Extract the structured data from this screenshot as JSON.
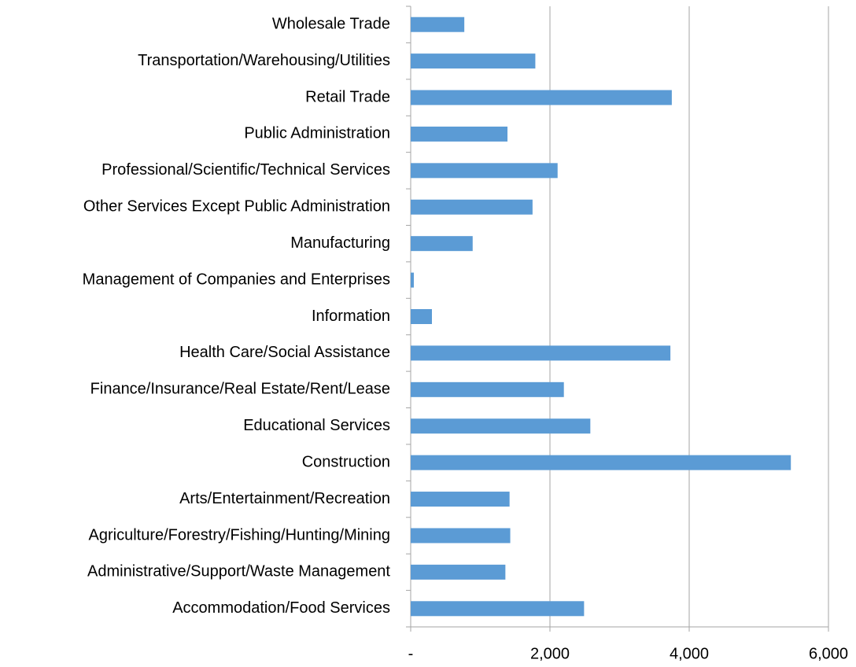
{
  "chart_data": {
    "type": "hbar",
    "categories": [
      "Wholesale Trade",
      "Transportation/Warehousing/Utilities",
      "Retail Trade",
      "Public Administration",
      "Professional/Scientific/Technical Services",
      "Other Services Except Public Administration",
      "Manufacturing",
      "Management of Companies and Enterprises",
      "Information",
      "Health Care/Social Assistance",
      "Finance/Insurance/Real Estate/Rent/Lease",
      "Educational Services",
      "Construction",
      "Arts/Entertainment/Recreation",
      "Agriculture/Forestry/Fishing/Hunting/Mining",
      "Administrative/Support/Waste Management",
      "Accommodation/Food Services"
    ],
    "values": [
      770,
      1790,
      3750,
      1390,
      2110,
      1750,
      890,
      45,
      305,
      3730,
      2200,
      2580,
      5460,
      1420,
      1430,
      1360,
      2490
    ],
    "color": "#5b9bd5",
    "xlim": [
      0,
      6000
    ],
    "xticks": [
      {
        "value": 0,
        "label": "-"
      },
      {
        "value": 2000,
        "label": "2,000"
      },
      {
        "value": 4000,
        "label": "4,000"
      },
      {
        "value": 6000,
        "label": "6,000"
      }
    ],
    "grid": true
  }
}
